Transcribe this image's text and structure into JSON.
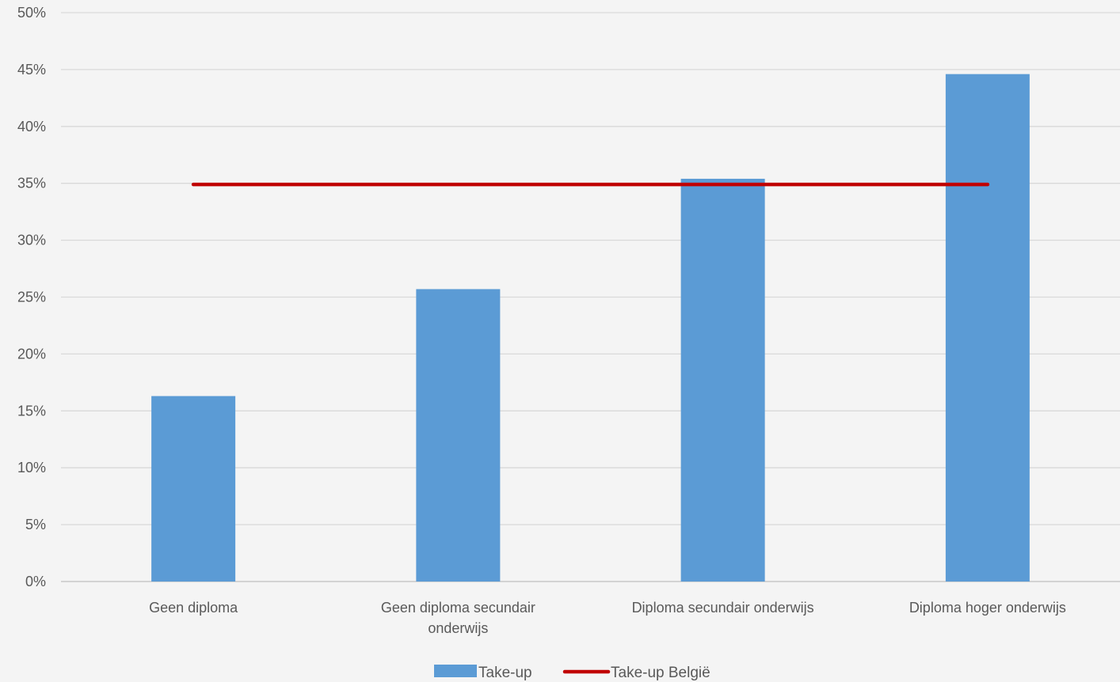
{
  "chart_data": {
    "type": "bar",
    "categories": [
      "Geen diploma",
      "Geen diploma secundair onderwijs",
      "Diploma secundair onderwijs",
      "Diploma hoger onderwijs"
    ],
    "category_label_lines": [
      [
        "Geen diploma"
      ],
      [
        "Geen diploma secundair",
        "onderwijs"
      ],
      [
        "Diploma secundair onderwijs"
      ],
      [
        "Diploma hoger onderwijs"
      ]
    ],
    "series": [
      {
        "name": "Take-up",
        "type": "bar",
        "values": [
          16.3,
          25.7,
          35.4,
          44.6
        ],
        "color": "#5b9bd5"
      },
      {
        "name": "Take-up België",
        "type": "line",
        "values": [
          34.9,
          34.9,
          34.9,
          34.9
        ],
        "color": "#c00000"
      }
    ],
    "ylim": [
      0,
      50
    ],
    "yticks": [
      0,
      5,
      10,
      15,
      20,
      25,
      30,
      35,
      40,
      45,
      50
    ],
    "ytick_labels": [
      "0%",
      "5%",
      "10%",
      "15%",
      "20%",
      "25%",
      "30%",
      "35%",
      "40%",
      "45%",
      "50%"
    ],
    "grid": true,
    "legend_position": "bottom",
    "title": "",
    "xlabel": "",
    "ylabel": ""
  },
  "colors": {
    "background": "#f4f4f4",
    "gridline": "#d9d9d9",
    "axis": "#bfbfbf",
    "text": "#595959"
  }
}
